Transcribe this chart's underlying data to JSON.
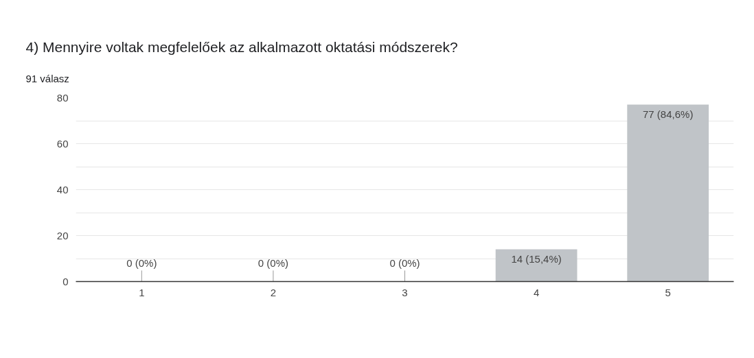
{
  "chart_data": {
    "type": "bar",
    "title": "4) Mennyire voltak megfelelőek az alkalmazott oktatási módszerek?",
    "subtitle": "91 válasz",
    "categories": [
      "1",
      "2",
      "3",
      "4",
      "5"
    ],
    "values": [
      0,
      0,
      0,
      14,
      77
    ],
    "color": "#c0c4c8",
    "value_labels": [
      "0 (0%)",
      "0 (0%)",
      "0 (0%)",
      "14 (15,4%)",
      "77 (84,6%)"
    ],
    "ylim": [
      0,
      80
    ],
    "yticks": [
      0,
      {
        "value": 10,
        "label": null
      },
      20,
      {
        "value": 30,
        "label": null
      },
      40,
      {
        "value": 50,
        "label": null
      },
      60,
      {
        "value": 70,
        "label": null
      },
      80
    ],
    "grid": "y"
  }
}
